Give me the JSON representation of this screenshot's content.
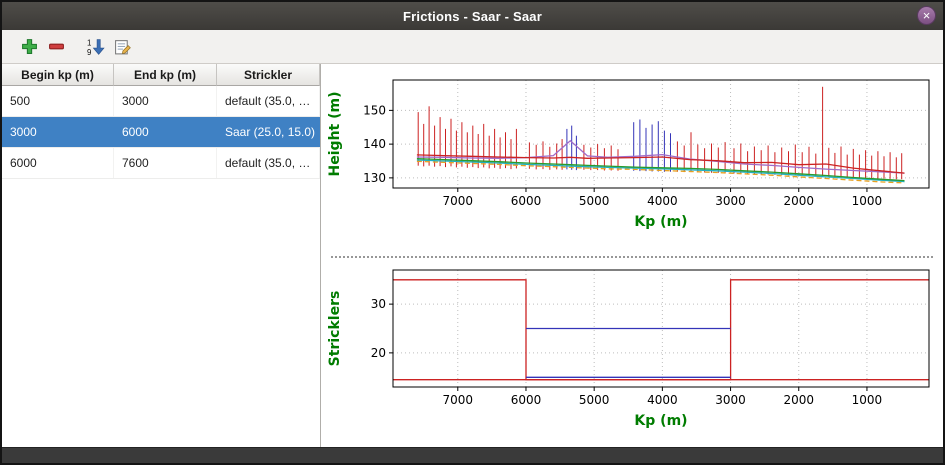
{
  "window": {
    "title": "Frictions - Saar - Saar",
    "close_glyph": "×"
  },
  "toolbar": {
    "buttons": [
      {
        "name": "add",
        "icon": "plus-icon"
      },
      {
        "name": "remove",
        "icon": "minus-icon"
      },
      {
        "name": "sort",
        "icon": "sort-1-9-icon"
      },
      {
        "name": "edit",
        "icon": "edit-icon"
      }
    ]
  },
  "table": {
    "columns": [
      "Begin kp (m)",
      "End kp (m)",
      "Strickler"
    ],
    "rows": [
      {
        "begin": "500",
        "end": "3000",
        "strickler": "default (35.0, …"
      },
      {
        "begin": "3000",
        "end": "6000",
        "strickler": "Saar (25.0, 15.0)"
      },
      {
        "begin": "6000",
        "end": "7600",
        "strickler": "default (35.0, …"
      }
    ],
    "selected_index": 1,
    "selection_color": "#3f81c4"
  },
  "chart_data": [
    {
      "type": "line",
      "title": "",
      "xlabel": "Kp (m)",
      "ylabel": "Height (m)",
      "label_color": "#007c00",
      "xlim": [
        7950,
        90
      ],
      "ylim": [
        127,
        159
      ],
      "x_axis_reversed": true,
      "grid": true,
      "x_ticks": [
        7000,
        6000,
        5000,
        4000,
        3000,
        2000,
        1000
      ],
      "y_ticks": [
        130,
        140,
        150
      ],
      "palette": {
        "r": "#cc2222",
        "b": "#3434b8"
      },
      "series": [
        {
          "name": "bed-low-orange",
          "color": "#e8a020",
          "dash": "5,3",
          "points": [
            [
              7600,
              134.9
            ],
            [
              7200,
              134.6
            ],
            [
              6800,
              134.3
            ],
            [
              6400,
              134.0
            ],
            [
              6000,
              133.6
            ],
            [
              5600,
              133.3
            ],
            [
              5350,
              133.1
            ],
            [
              5100,
              132.9
            ],
            [
              4800,
              132.7
            ],
            [
              4400,
              132.5
            ],
            [
              4000,
              132.2
            ],
            [
              3600,
              131.9
            ],
            [
              3200,
              131.6
            ],
            [
              2800,
              131.2
            ],
            [
              2400,
              130.8
            ],
            [
              2000,
              130.3
            ],
            [
              1600,
              129.8
            ],
            [
              1200,
              129.3
            ],
            [
              800,
              128.8
            ],
            [
              450,
              128.5
            ]
          ]
        },
        {
          "name": "bed-cyan",
          "color": "#20b0c0",
          "points": [
            [
              7600,
              135.3
            ],
            [
              7200,
              135.0
            ],
            [
              6800,
              134.7
            ],
            [
              6400,
              134.4
            ],
            [
              6000,
              134.0
            ],
            [
              5600,
              133.7
            ],
            [
              5350,
              133.5
            ],
            [
              5100,
              133.3
            ],
            [
              4800,
              133.1
            ],
            [
              4400,
              132.9
            ],
            [
              4000,
              132.7
            ],
            [
              3600,
              132.4
            ],
            [
              3200,
              132.1
            ],
            [
              2800,
              131.7
            ],
            [
              2400,
              131.3
            ],
            [
              2000,
              130.8
            ],
            [
              1600,
              130.3
            ],
            [
              1200,
              129.8
            ],
            [
              800,
              129.3
            ],
            [
              450,
              128.9
            ]
          ]
        },
        {
          "name": "bed-green",
          "color": "#2a9a2a",
          "points": [
            [
              7600,
              135.7
            ],
            [
              7200,
              135.4
            ],
            [
              6800,
              135.1
            ],
            [
              6400,
              134.8
            ],
            [
              6000,
              134.4
            ],
            [
              5600,
              134.1
            ],
            [
              5350,
              133.9
            ],
            [
              5100,
              133.7
            ],
            [
              4800,
              133.5
            ],
            [
              4400,
              133.2
            ],
            [
              4000,
              133.0
            ],
            [
              3600,
              132.8
            ],
            [
              3200,
              132.5
            ],
            [
              2800,
              132.1
            ],
            [
              2400,
              131.7
            ],
            [
              2000,
              131.2
            ],
            [
              1600,
              130.7
            ],
            [
              1200,
              130.1
            ],
            [
              800,
              129.6
            ],
            [
              450,
              129.2
            ]
          ]
        },
        {
          "name": "level-violet",
          "color": "#a06bc8",
          "points": [
            [
              7600,
              136.2
            ],
            [
              7200,
              136.1
            ],
            [
              6800,
              135.9
            ],
            [
              6400,
              135.8
            ],
            [
              6000,
              136.0
            ],
            [
              5600,
              136.6
            ],
            [
              5350,
              141.0
            ],
            [
              5100,
              136.5
            ],
            [
              4800,
              136.1
            ],
            [
              4400,
              136.4
            ],
            [
              4000,
              136.9
            ],
            [
              3600,
              135.6
            ],
            [
              3200,
              134.9
            ],
            [
              2800,
              134.1
            ],
            [
              2400,
              133.7
            ],
            [
              2000,
              133.1
            ],
            [
              1600,
              132.6
            ],
            [
              1200,
              132.2
            ],
            [
              800,
              131.8
            ],
            [
              450,
              131.4
            ]
          ]
        },
        {
          "name": "level-red",
          "color": "#cc2222",
          "points": [
            [
              7600,
              136.8
            ],
            [
              7200,
              136.6
            ],
            [
              6800,
              136.4
            ],
            [
              6400,
              136.2
            ],
            [
              6000,
              136.0
            ],
            [
              5600,
              135.9
            ],
            [
              5350,
              136.1
            ],
            [
              5100,
              135.8
            ],
            [
              4800,
              135.9
            ],
            [
              4400,
              136.0
            ],
            [
              4000,
              136.2
            ],
            [
              3600,
              135.4
            ],
            [
              3200,
              135.1
            ],
            [
              2800,
              134.5
            ],
            [
              2400,
              134.6
            ],
            [
              2000,
              133.9
            ],
            [
              1600,
              134.1
            ],
            [
              1200,
              132.9
            ],
            [
              800,
              132.1
            ],
            [
              450,
              131.4
            ]
          ]
        }
      ],
      "vlines": [
        [
          7580,
          133.6,
          149.5,
          "r"
        ],
        [
          7500,
          133.4,
          146.0,
          "r"
        ],
        [
          7420,
          133.6,
          151.2,
          "r"
        ],
        [
          7340,
          133.3,
          145.5,
          "r"
        ],
        [
          7260,
          133.5,
          148.0,
          "r"
        ],
        [
          7180,
          133.2,
          144.5,
          "r"
        ],
        [
          7100,
          133.4,
          147.5,
          "r"
        ],
        [
          7020,
          133.1,
          144.0,
          "r"
        ],
        [
          6940,
          133.3,
          146.5,
          "r"
        ],
        [
          6860,
          133.0,
          143.5,
          "r"
        ],
        [
          6780,
          133.2,
          145.5,
          "r"
        ],
        [
          6700,
          132.9,
          143.0,
          "r"
        ],
        [
          6620,
          133.1,
          146.0,
          "r"
        ],
        [
          6540,
          132.8,
          142.5,
          "r"
        ],
        [
          6460,
          133.0,
          144.5,
          "r"
        ],
        [
          6380,
          132.7,
          142.0,
          "r"
        ],
        [
          6300,
          132.9,
          143.5,
          "r"
        ],
        [
          6220,
          132.6,
          141.5,
          "r"
        ],
        [
          6140,
          132.8,
          144.5,
          "r"
        ],
        [
          5950,
          132.7,
          140.5,
          "r"
        ],
        [
          5850,
          132.5,
          139.8,
          "r"
        ],
        [
          5750,
          132.6,
          140.8,
          "r"
        ],
        [
          5650,
          132.4,
          139.2,
          "r"
        ],
        [
          5550,
          132.5,
          140.2,
          "r"
        ],
        [
          5470,
          132.4,
          141.5,
          "r"
        ],
        [
          5400,
          132.5,
          144.5,
          "b"
        ],
        [
          5330,
          132.4,
          145.5,
          "b"
        ],
        [
          5260,
          132.3,
          142.5,
          "b"
        ],
        [
          5150,
          132.4,
          139.8,
          "r"
        ],
        [
          5050,
          132.3,
          139.0,
          "r"
        ],
        [
          4950,
          132.3,
          140.0,
          "r"
        ],
        [
          4850,
          132.2,
          138.8,
          "r"
        ],
        [
          4750,
          132.2,
          139.6,
          "r"
        ],
        [
          4650,
          132.1,
          138.5,
          "r"
        ],
        [
          4420,
          132.1,
          146.5,
          "b"
        ],
        [
          4330,
          132.0,
          147.3,
          "b"
        ],
        [
          4240,
          132.0,
          144.8,
          "b"
        ],
        [
          4150,
          131.9,
          145.8,
          "b"
        ],
        [
          4060,
          131.9,
          146.8,
          "b"
        ],
        [
          3970,
          131.8,
          144.0,
          "b"
        ],
        [
          3880,
          131.8,
          143.2,
          "b"
        ],
        [
          3780,
          131.8,
          140.8,
          "r"
        ],
        [
          3680,
          131.7,
          139.6,
          "r"
        ],
        [
          3580,
          131.7,
          143.5,
          "r"
        ],
        [
          3480,
          131.6,
          139.9,
          "r"
        ],
        [
          3380,
          131.6,
          138.8,
          "r"
        ],
        [
          3280,
          131.5,
          140.2,
          "r"
        ],
        [
          3180,
          131.5,
          139.0,
          "r"
        ],
        [
          3080,
          131.4,
          140.6,
          "r"
        ],
        [
          2950,
          131.3,
          138.8,
          "r"
        ],
        [
          2850,
          131.2,
          140.2,
          "r"
        ],
        [
          2750,
          131.2,
          137.9,
          "r"
        ],
        [
          2650,
          131.1,
          139.3,
          "r"
        ],
        [
          2550,
          131.0,
          138.2,
          "r"
        ],
        [
          2450,
          131.0,
          139.6,
          "r"
        ],
        [
          2350,
          130.9,
          137.6,
          "r"
        ],
        [
          2250,
          130.8,
          139.0,
          "r"
        ],
        [
          2150,
          130.8,
          137.9,
          "r"
        ],
        [
          2050,
          130.7,
          139.9,
          "r"
        ],
        [
          1950,
          130.6,
          137.6,
          "r"
        ],
        [
          1850,
          130.5,
          139.2,
          "r"
        ],
        [
          1750,
          130.5,
          137.2,
          "r"
        ],
        [
          1650,
          130.4,
          157.0,
          "r"
        ],
        [
          1560,
          130.4,
          138.9,
          "r"
        ],
        [
          1470,
          130.3,
          137.4,
          "r"
        ],
        [
          1380,
          130.2,
          139.3,
          "r"
        ],
        [
          1290,
          130.2,
          136.9,
          "r"
        ],
        [
          1200,
          130.1,
          138.6,
          "r"
        ],
        [
          1110,
          130.0,
          136.9,
          "r"
        ],
        [
          1020,
          130.0,
          138.2,
          "r"
        ],
        [
          930,
          129.9,
          136.6,
          "r"
        ],
        [
          840,
          129.8,
          137.9,
          "r"
        ],
        [
          750,
          129.8,
          136.4,
          "r"
        ],
        [
          660,
          129.7,
          137.6,
          "r"
        ],
        [
          570,
          129.6,
          136.1,
          "r"
        ],
        [
          490,
          129.6,
          137.3,
          "r"
        ]
      ]
    },
    {
      "type": "step",
      "title": "",
      "xlabel": "Kp (m)",
      "ylabel": "Stricklers",
      "label_color": "#007c00",
      "xlim": [
        7950,
        90
      ],
      "ylim": [
        13,
        37
      ],
      "x_axis_reversed": true,
      "grid": true,
      "x_ticks": [
        7000,
        6000,
        5000,
        4000,
        3000,
        2000,
        1000
      ],
      "y_ticks": [
        20,
        30
      ],
      "series": [
        {
          "name": "default-zones-main-channel",
          "color": "#cc2222",
          "points": [
            [
              7950,
              35
            ],
            [
              6000,
              35
            ],
            [
              6000,
              14.5
            ],
            [
              3000,
              14.5
            ],
            [
              3000,
              35
            ],
            [
              90,
              35
            ]
          ]
        },
        {
          "name": "default-zones-floodplain",
          "color": "#cc2222",
          "points": [
            [
              7950,
              14.5
            ],
            [
              90,
              14.5
            ]
          ]
        },
        {
          "name": "saar-zone-main-channel",
          "color": "#3434b8",
          "points": [
            [
              6000,
              25
            ],
            [
              3000,
              25
            ]
          ]
        },
        {
          "name": "saar-zone-floodplain",
          "color": "#3434b8",
          "points": [
            [
              6000,
              15
            ],
            [
              3000,
              15
            ]
          ]
        }
      ]
    }
  ]
}
